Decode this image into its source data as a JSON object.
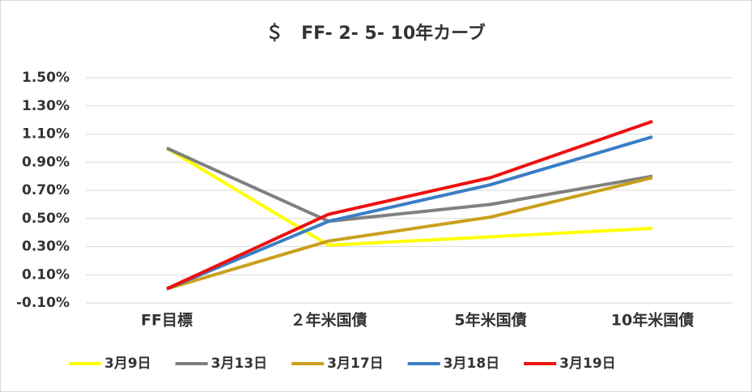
{
  "chart_data": {
    "type": "line",
    "title": "＄　FF- 2- 5- 10年カーブ",
    "categories": [
      "FF目標",
      "２年米国債",
      "5年米国債",
      "10年米国債"
    ],
    "series": [
      {
        "name": "3月9日",
        "color": "#ffff00",
        "values": [
          1.0,
          0.31,
          0.37,
          0.43
        ]
      },
      {
        "name": "3月13日",
        "color": "#808080",
        "values": [
          1.0,
          0.48,
          0.6,
          0.8
        ]
      },
      {
        "name": "3月17日",
        "color": "#c9a01c",
        "values": [
          0.0,
          0.34,
          0.51,
          0.79
        ]
      },
      {
        "name": "3月18日",
        "color": "#3a7ec6",
        "values": [
          0.0,
          0.48,
          0.74,
          1.08
        ]
      },
      {
        "name": "3月19日",
        "color": "#ee1010",
        "values": [
          0.0,
          0.53,
          0.79,
          1.19
        ]
      }
    ],
    "ylim": [
      -0.1,
      1.5
    ],
    "yticks": [
      {
        "value": -0.1,
        "label": "-0.10%"
      },
      {
        "value": 0.1,
        "label": "0.10%"
      },
      {
        "value": 0.3,
        "label": "0.30%"
      },
      {
        "value": 0.5,
        "label": "0.50%"
      },
      {
        "value": 0.7,
        "label": "0.70%"
      },
      {
        "value": 0.9,
        "label": "0.90%"
      },
      {
        "value": 1.1,
        "label": "1.10%"
      },
      {
        "value": 1.3,
        "label": "1.30%"
      },
      {
        "value": 1.5,
        "label": "1.50%"
      }
    ],
    "grid": true,
    "legend": "bottom"
  }
}
